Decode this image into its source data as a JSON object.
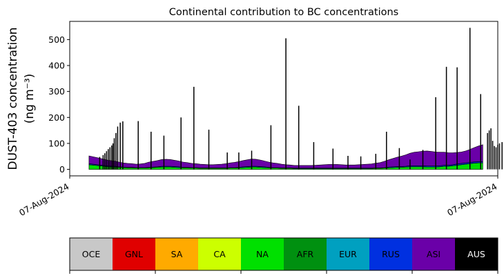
{
  "chart_data": {
    "type": "area",
    "title": "Continental contribution to BC concentrations",
    "ylabel_line1": "DUST-403 concentration",
    "ylabel_line2": "(ng m⁻³)",
    "xlabel": "",
    "ylim": [
      -25,
      570
    ],
    "yticks": [
      0,
      100,
      200,
      300,
      400,
      500
    ],
    "x_tick_labels": [
      "07-Aug-2024",
      "07-Aug-2024"
    ],
    "grid": false,
    "stacked": true,
    "x": [
      0.045,
      0.07,
      0.09,
      0.105,
      0.115,
      0.125,
      0.135,
      0.145,
      0.155,
      0.165,
      0.175,
      0.185,
      0.195,
      0.205,
      0.215,
      0.225,
      0.235,
      0.245,
      0.255,
      0.265,
      0.275,
      0.285,
      0.295,
      0.305,
      0.315,
      0.325,
      0.335,
      0.345,
      0.355,
      0.365,
      0.375,
      0.385,
      0.395,
      0.405,
      0.415,
      0.425,
      0.435,
      0.445,
      0.455,
      0.465,
      0.475,
      0.485,
      0.495,
      0.505,
      0.515,
      0.525,
      0.535,
      0.545,
      0.555,
      0.565,
      0.575,
      0.585,
      0.595,
      0.605,
      0.615,
      0.625,
      0.635,
      0.645,
      0.655,
      0.665,
      0.675,
      0.685,
      0.695,
      0.705,
      0.715,
      0.725,
      0.735,
      0.745,
      0.755,
      0.765,
      0.775,
      0.785,
      0.795,
      0.805,
      0.815,
      0.825,
      0.835,
      0.845,
      0.855,
      0.865,
      0.875,
      0.885,
      0.895,
      0.905,
      0.915,
      0.925,
      0.935,
      0.945,
      0.955,
      0.965
    ],
    "series": [
      {
        "name": "NA",
        "color": "#00e000",
        "values": [
          18,
          14,
          10,
          9,
          8,
          7,
          6,
          6,
          5,
          5,
          5,
          6,
          7,
          8,
          9,
          9,
          9,
          8,
          7,
          6,
          6,
          5,
          5,
          4,
          4,
          4,
          4,
          4,
          4,
          4,
          5,
          5,
          6,
          7,
          8,
          9,
          9,
          8,
          7,
          6,
          5,
          5,
          4,
          4,
          4,
          3,
          3,
          3,
          3,
          3,
          3,
          3,
          3,
          3,
          3,
          3,
          3,
          3,
          3,
          3,
          3,
          3,
          3,
          3,
          4,
          4,
          5,
          6,
          7,
          8,
          8,
          9,
          10,
          10,
          10,
          10,
          9,
          9,
          9,
          10,
          12,
          12,
          14,
          16,
          18,
          20,
          22,
          24,
          25,
          25
        ]
      },
      {
        "name": "RUS",
        "color": "#0030e0",
        "values": [
          4,
          3,
          3,
          3,
          2,
          2,
          2,
          2,
          2,
          2,
          2,
          2,
          2,
          2,
          3,
          3,
          3,
          3,
          3,
          2,
          2,
          2,
          2,
          2,
          2,
          2,
          2,
          2,
          2,
          2,
          2,
          2,
          2,
          3,
          3,
          3,
          3,
          3,
          3,
          2,
          2,
          2,
          2,
          2,
          2,
          2,
          2,
          2,
          2,
          2,
          2,
          2,
          2,
          2,
          2,
          2,
          2,
          2,
          2,
          2,
          2,
          2,
          2,
          2,
          2,
          2,
          2,
          3,
          3,
          3,
          3,
          3,
          4,
          4,
          4,
          4,
          4,
          4,
          4,
          4,
          4,
          4,
          4,
          5,
          5,
          5,
          5,
          5,
          5,
          5
        ]
      },
      {
        "name": "ASI",
        "color": "#6a00a8",
        "values": [
          30,
          26,
          22,
          20,
          18,
          16,
          15,
          14,
          13,
          14,
          16,
          20,
          22,
          24,
          26,
          27,
          26,
          24,
          22,
          20,
          18,
          16,
          15,
          14,
          13,
          12,
          12,
          13,
          14,
          16,
          18,
          20,
          22,
          24,
          26,
          28,
          27,
          25,
          22,
          20,
          18,
          16,
          14,
          12,
          11,
          10,
          10,
          10,
          10,
          10,
          11,
          12,
          13,
          14,
          14,
          14,
          13,
          12,
          12,
          12,
          13,
          14,
          15,
          16,
          18,
          20,
          24,
          28,
          32,
          36,
          40,
          44,
          48,
          52,
          54,
          56,
          58,
          56,
          54,
          52,
          50,
          48,
          46,
          44,
          44,
          46,
          50,
          55,
          60,
          65
        ]
      }
    ],
    "peaks": [
      {
        "x": 0.07,
        "y": 48
      },
      {
        "x": 0.078,
        "y": 55
      },
      {
        "x": 0.082,
        "y": 62
      },
      {
        "x": 0.086,
        "y": 70
      },
      {
        "x": 0.09,
        "y": 78
      },
      {
        "x": 0.094,
        "y": 85
      },
      {
        "x": 0.098,
        "y": 92
      },
      {
        "x": 0.101,
        "y": 100
      },
      {
        "x": 0.104,
        "y": 120
      },
      {
        "x": 0.108,
        "y": 140
      },
      {
        "x": 0.112,
        "y": 165
      },
      {
        "x": 0.118,
        "y": 180
      },
      {
        "x": 0.124,
        "y": 185
      },
      {
        "x": 0.16,
        "y": 186
      },
      {
        "x": 0.19,
        "y": 145
      },
      {
        "x": 0.22,
        "y": 130
      },
      {
        "x": 0.26,
        "y": 200
      },
      {
        "x": 0.29,
        "y": 318
      },
      {
        "x": 0.325,
        "y": 153
      },
      {
        "x": 0.368,
        "y": 65
      },
      {
        "x": 0.395,
        "y": 65
      },
      {
        "x": 0.425,
        "y": 72
      },
      {
        "x": 0.47,
        "y": 170
      },
      {
        "x": 0.505,
        "y": 505
      },
      {
        "x": 0.535,
        "y": 245
      },
      {
        "x": 0.57,
        "y": 105
      },
      {
        "x": 0.615,
        "y": 80
      },
      {
        "x": 0.65,
        "y": 52
      },
      {
        "x": 0.68,
        "y": 50
      },
      {
        "x": 0.715,
        "y": 60
      },
      {
        "x": 0.74,
        "y": 145
      },
      {
        "x": 0.77,
        "y": 82
      },
      {
        "x": 0.795,
        "y": 38
      },
      {
        "x": 0.825,
        "y": 75
      },
      {
        "x": 0.855,
        "y": 278
      },
      {
        "x": 0.88,
        "y": 395
      },
      {
        "x": 0.905,
        "y": 393
      },
      {
        "x": 0.935,
        "y": 545
      },
      {
        "x": 0.96,
        "y": 290
      },
      {
        "x": 0.976,
        "y": 140
      },
      {
        "x": 0.98,
        "y": 150
      },
      {
        "x": 0.984,
        "y": 158
      },
      {
        "x": 0.988,
        "y": 110
      },
      {
        "x": 0.992,
        "y": 90
      },
      {
        "x": 0.996,
        "y": 85
      },
      {
        "x": 1.0,
        "y": 95
      },
      {
        "x": 1.004,
        "y": 100
      },
      {
        "x": 1.01,
        "y": 105
      }
    ],
    "legend": [
      {
        "label": "OCE",
        "color": "#c8c8c8"
      },
      {
        "label": "GNL",
        "color": "#e00000"
      },
      {
        "label": "SA",
        "color": "#ffaa00"
      },
      {
        "label": "CA",
        "color": "#ccff00"
      },
      {
        "label": "NA",
        "color": "#00e000"
      },
      {
        "label": "AFR",
        "color": "#009010"
      },
      {
        "label": "EUR",
        "color": "#00a0c0"
      },
      {
        "label": "RUS",
        "color": "#0030e0"
      },
      {
        "label": "ASI",
        "color": "#6a00a8"
      },
      {
        "label": "AUS",
        "color": "#000000"
      }
    ]
  }
}
